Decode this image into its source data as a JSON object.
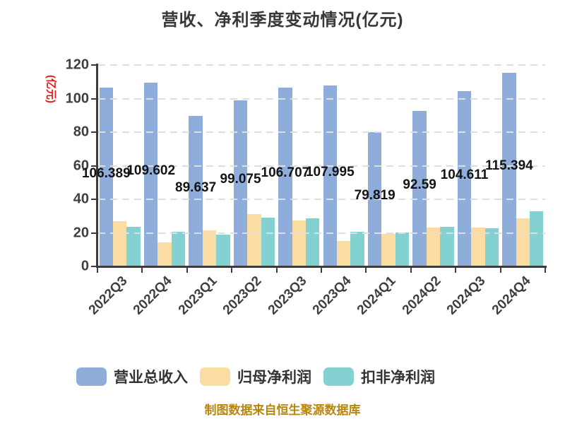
{
  "title": "营收、净利季度变动情况(亿元)",
  "y_axis_label": "(亿元)",
  "caption": "制图数据来自恒生聚源数据库",
  "colors": {
    "title": "#383838",
    "axis": "#3c3c3c",
    "grid": "#dedede",
    "tick_label": "#3f3f3f",
    "data_label": "#141414",
    "y_axis_label": "#e01b1b",
    "caption": "#b8860b"
  },
  "chart_data": {
    "type": "bar",
    "categories": [
      "2022Q3",
      "2022Q4",
      "2023Q1",
      "2023Q2",
      "2023Q3",
      "2023Q4",
      "2024Q1",
      "2024Q2",
      "2024Q3",
      "2024Q4"
    ],
    "series": [
      {
        "name": "营业总收入",
        "color": "#8fadda",
        "values": [
          106.389,
          109.602,
          89.637,
          99.075,
          106.707,
          107.995,
          79.819,
          92.59,
          104.611,
          115.394
        ],
        "labels": [
          "106.389",
          "109.602",
          "89.637",
          "99.075",
          "106.707",
          "107.995",
          "79.819",
          "92.59",
          "104.611",
          "115.394"
        ],
        "show_value_labels": true
      },
      {
        "name": "归母净利润",
        "color": "#fbdca2",
        "values": [
          27.0,
          14.3,
          21.6,
          31.2,
          27.4,
          15.3,
          19.2,
          23.0,
          23.0,
          28.6
        ],
        "show_value_labels": false
      },
      {
        "name": "扣非净利润",
        "color": "#84d1d1",
        "values": [
          23.7,
          20.6,
          19.0,
          29.2,
          28.8,
          20.5,
          20.2,
          23.7,
          22.6,
          32.8
        ],
        "show_value_labels": false
      }
    ],
    "ylim": [
      0,
      120
    ],
    "yticks": [
      0,
      20,
      40,
      60,
      80,
      100,
      120
    ],
    "grid": "dashed horizontal, drawn over bars",
    "legend_position": "bottom"
  }
}
